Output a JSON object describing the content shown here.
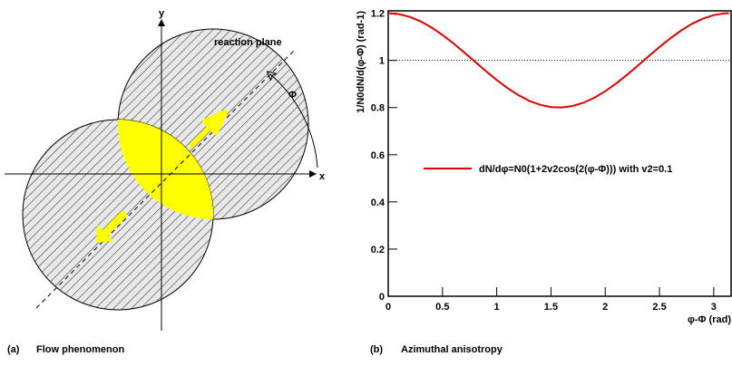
{
  "diagram": {
    "axis_y": "y",
    "axis_x": "x",
    "reaction_plane": "reaction plane",
    "angle": "Φ"
  },
  "captions": [
    {
      "label": "(a)",
      "text": "Flow phenomenon"
    },
    {
      "label": "(b)",
      "text": "Azimuthal anisotropy"
    }
  ],
  "chart_data": {
    "type": "line",
    "x_label": "φ-Φ (rad)",
    "y_label": "1/N0dN/d(φ-Φ) (rad-1)",
    "x": [
      0,
      0.1,
      0.2,
      0.3,
      0.4,
      0.5,
      0.6,
      0.7,
      0.8,
      0.9,
      1.0,
      1.1,
      1.2,
      1.3,
      1.4,
      1.5,
      1.6,
      1.7,
      1.8,
      1.9,
      2.0,
      2.1,
      2.2,
      2.3,
      2.4,
      2.5,
      2.6,
      2.7,
      2.8,
      2.9,
      3.0,
      3.1,
      3.14
    ],
    "series": [
      {
        "name": "dN/dφ=N0(1+2v2cos(2(φ-Φ))) with v2=0.1",
        "color": "#e00000",
        "values": [
          1.2,
          1.196,
          1.1842,
          1.1651,
          1.1393,
          1.1081,
          1.0725,
          1.034,
          0.9942,
          0.9546,
          0.9168,
          0.8823,
          0.8525,
          0.8286,
          0.8116,
          0.802,
          0.8003,
          0.8066,
          0.8206,
          0.8418,
          0.8693,
          0.9019,
          0.9385,
          0.9776,
          1.0175,
          1.0567,
          1.0937,
          1.1269,
          1.1551,
          1.1771,
          1.192,
          1.1993,
          1.2
        ]
      }
    ],
    "reference_line": 1,
    "xlim": [
      0,
      3.16
    ],
    "ylim": [
      0,
      1.21
    ],
    "xticks": [
      0,
      0.5,
      1,
      1.5,
      2,
      2.5,
      3
    ],
    "yticks": [
      0,
      0.2,
      0.4,
      0.6,
      0.8,
      1,
      1.2
    ]
  }
}
